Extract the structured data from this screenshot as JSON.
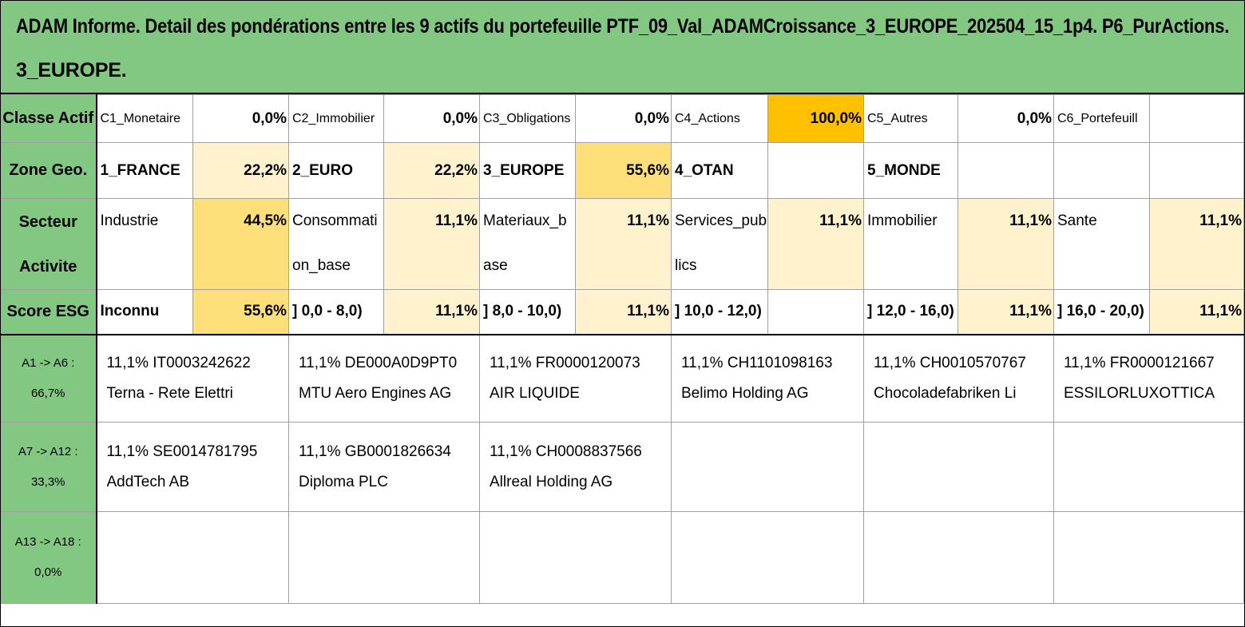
{
  "title_line1": "ADAM Informe. Detail des pondérations entre les 9 actifs du portefeuille PTF_09_Val_ADAMCroissance_3_EUROPE_202504_15_1p4. P6_PurActions.",
  "title_line2": "3_EUROPE.",
  "classe_actif": {
    "header": "Classe Actif",
    "items": [
      {
        "label": "C1_Monetaire",
        "value": "0,0%"
      },
      {
        "label": "C2_Immobilier",
        "value": "0,0%"
      },
      {
        "label": "C3_Obligations",
        "value": "0,0%"
      },
      {
        "label": "C4_Actions",
        "value": "100,0%"
      },
      {
        "label": "C5_Autres",
        "value": "0,0%"
      },
      {
        "label": "C6_Portefeuill",
        "value": ""
      }
    ]
  },
  "zone_geo": {
    "header": "Zone Geo.",
    "items": [
      {
        "label": "1_FRANCE",
        "value": "22,2%"
      },
      {
        "label": "2_EURO",
        "value": "22,2%"
      },
      {
        "label": "3_EUROPE",
        "value": "55,6%"
      },
      {
        "label": "4_OTAN",
        "value": ""
      },
      {
        "label": "5_MONDE",
        "value": ""
      },
      {
        "label": "",
        "value": ""
      }
    ]
  },
  "secteur": {
    "header": "Secteur Activite",
    "items": [
      {
        "label": "Industrie",
        "value": "44,5%"
      },
      {
        "label": "Consommation_base",
        "value": "11,1%"
      },
      {
        "label": "Materiaux_base",
        "value": "11,1%"
      },
      {
        "label": "Services_publics",
        "value": "11,1%"
      },
      {
        "label": "Immobilier",
        "value": "11,1%"
      },
      {
        "label": "Sante",
        "value": "11,1%"
      }
    ]
  },
  "score_esg": {
    "header": "Score ESG",
    "items": [
      {
        "label": "Inconnu",
        "value": "55,6%"
      },
      {
        "label": "] 0,0 - 8,0)",
        "value": "11,1%"
      },
      {
        "label": "] 8,0 - 10,0)",
        "value": "11,1%"
      },
      {
        "label": "] 10,0 - 12,0)",
        "value": ""
      },
      {
        "label": "] 12,0 - 16,0)",
        "value": "11,1%"
      },
      {
        "label": "] 16,0 - 20,0)",
        "value": "11,1%"
      }
    ]
  },
  "asset_rows": [
    {
      "header_line1": "A1 -> A6 :",
      "header_line2": "66,7%",
      "assets": [
        {
          "line1": "11,1% IT0003242622",
          "line2": "Terna - Rete Elettri"
        },
        {
          "line1": "11,1% DE000A0D9PT0",
          "line2": "MTU Aero Engines AG"
        },
        {
          "line1": "11,1% FR0000120073",
          "line2": "AIR LIQUIDE"
        },
        {
          "line1": "11,1% CH1101098163",
          "line2": "Belimo Holding AG"
        },
        {
          "line1": "11,1% CH0010570767",
          "line2": "Chocoladefabriken Li"
        },
        {
          "line1": "11,1% FR0000121667",
          "line2": "ESSILORLUXOTTICA"
        }
      ]
    },
    {
      "header_line1": "A7 -> A12 :",
      "header_line2": "33,3%",
      "assets": [
        {
          "line1": "11,1% SE0014781795",
          "line2": "AddTech AB"
        },
        {
          "line1": "11,1% GB0001826634",
          "line2": "Diploma PLC"
        },
        {
          "line1": "11,1% CH0008837566",
          "line2": "Allreal Holding AG"
        },
        {
          "line1": "",
          "line2": ""
        },
        {
          "line1": "",
          "line2": ""
        },
        {
          "line1": "",
          "line2": ""
        }
      ]
    },
    {
      "header_line1": "A13 -> A18 :",
      "header_line2": "0,0%",
      "assets": [
        {
          "line1": "",
          "line2": ""
        },
        {
          "line1": "",
          "line2": ""
        },
        {
          "line1": "",
          "line2": ""
        },
        {
          "line1": "",
          "line2": ""
        },
        {
          "line1": "",
          "line2": ""
        },
        {
          "line1": "",
          "line2": ""
        }
      ]
    }
  ],
  "colors": {
    "header_green": "#82c882",
    "highlight_orange": "#ffc000",
    "highlight_yellow": "#ffdf7a",
    "highlight_light": "#fff2cc"
  }
}
